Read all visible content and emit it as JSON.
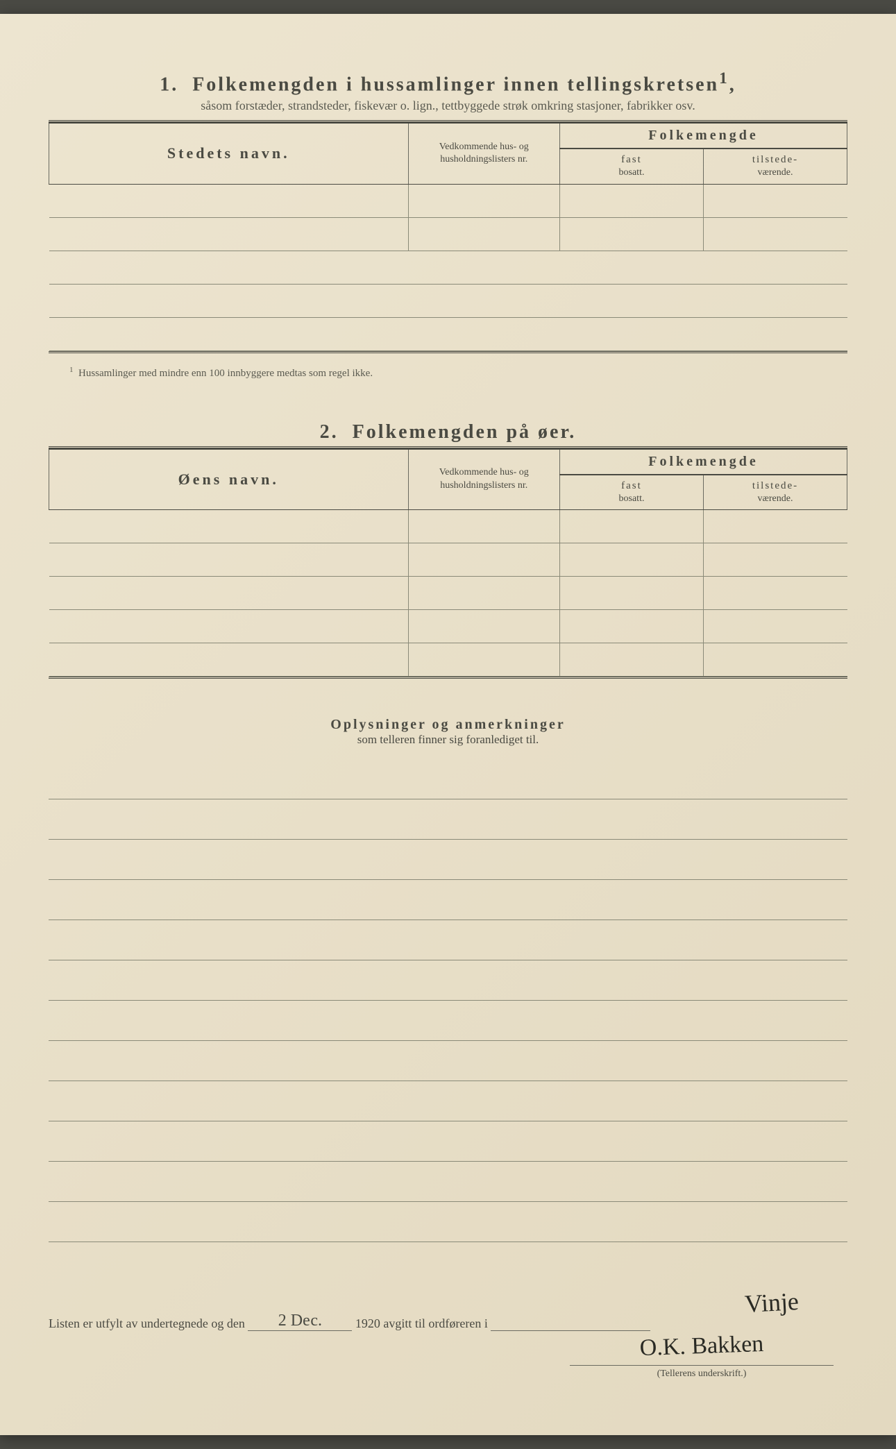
{
  "section1": {
    "number": "1.",
    "title": "Folkemengden i hussamlinger innen tellingskretsen",
    "title_sup": "1",
    "subtitle": "såsom forstæder, strandsteder, fiskevær o. lign., tettbyggede strøk omkring stasjoner, fabrikker osv.",
    "headers": {
      "name": "Stedets navn.",
      "lists": "Vedkommende hus- og husholdningslisters nr.",
      "folkemengde": "Folkemengde",
      "fast": "fast",
      "fast_sub": "bosatt.",
      "tilstede": "tilstede-",
      "tilstede_sub": "værende."
    },
    "row_count": 5,
    "footnote_marker": "1",
    "footnote": "Hussamlinger med mindre enn 100 innbyggere medtas som regel ikke."
  },
  "section2": {
    "number": "2.",
    "title": "Folkemengden på øer.",
    "headers": {
      "name": "Øens navn.",
      "lists": "Vedkommende hus- og husholdningslisters nr.",
      "folkemengde": "Folkemengde",
      "fast": "fast",
      "fast_sub": "bosatt.",
      "tilstede": "tilstede-",
      "tilstede_sub": "værende."
    },
    "row_count": 5
  },
  "section3": {
    "title": "Oplysninger og anmerkninger",
    "subtitle": "som telleren finner sig foranlediget til.",
    "line_count": 12
  },
  "footer": {
    "prefix": "Listen er utfylt av undertegnede og den",
    "date_handwritten": "2 Dес.",
    "year": "1920",
    "middle": "avgitt til ordføreren i",
    "place_handwritten": "Vinje",
    "signature": "O.K. Bakken",
    "signature_label": "(Tellerens underskrift.)"
  },
  "colors": {
    "paper": "#e8dfc8",
    "text": "#4a4a42",
    "rule": "#6a6a60",
    "light_rule": "#8a8a78",
    "ink": "#2a2a24"
  }
}
